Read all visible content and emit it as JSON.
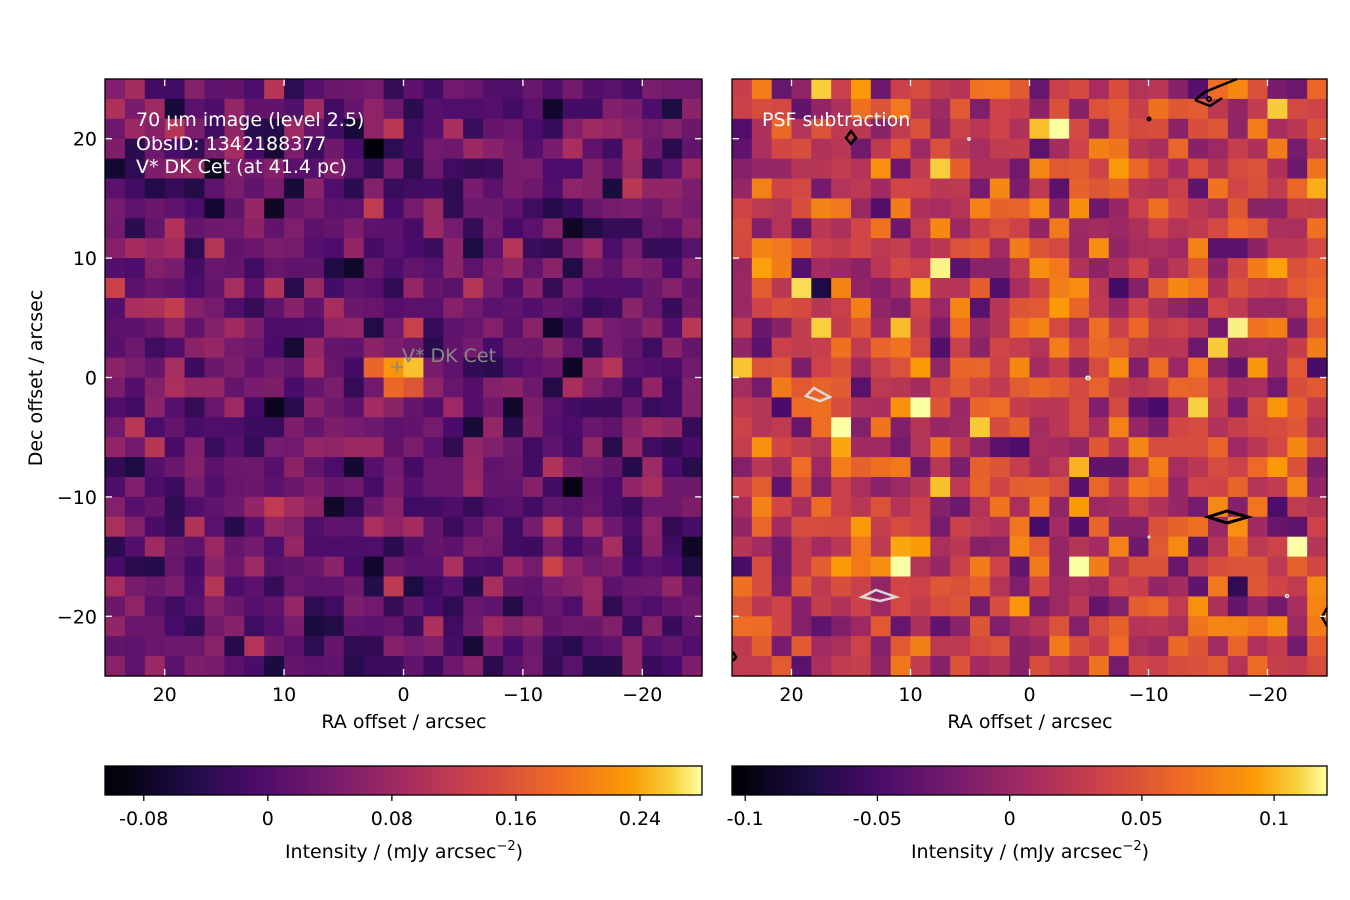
{
  "chart_data": [
    {
      "type": "heatmap",
      "panel": "left",
      "annotations": [
        "70 µm image (level 2.5)",
        "ObsID: 1342188377",
        "V* DK Cet (at 41.4 pc)"
      ],
      "source_label": "V* DK Cet",
      "source_position": [
        0,
        0
      ],
      "xlabel": "RA offset / arcsec",
      "ylabel": "Dec offset / arcsec",
      "xlim": [
        25,
        -25
      ],
      "ylim": [
        -25,
        25
      ],
      "xticks": [
        20,
        10,
        0,
        -10,
        -20
      ],
      "xtick_labels": [
        "20",
        "10",
        "0",
        "−10",
        "−20"
      ],
      "yticks": [
        20,
        10,
        0,
        -10,
        -20
      ],
      "ytick_labels": [
        "20",
        "10",
        "0",
        "−10",
        "−20"
      ],
      "grid_size": 30,
      "colormap": "inferno",
      "colorbar": {
        "label_main": "Intensity / (mJy arcsec",
        "label_exp": "−2",
        "label_end": ")",
        "range": [
          -0.105,
          0.28
        ],
        "ticks": [
          -0.08,
          0,
          0.08,
          0.16,
          0.24
        ],
        "tick_labels": [
          "-0.08",
          "0",
          "0.08",
          "0.16",
          "0.24"
        ]
      },
      "peak": {
        "ra": 0,
        "dec": 0,
        "value": 0.28
      }
    },
    {
      "type": "heatmap",
      "panel": "right",
      "annotations": [
        "PSF subtraction"
      ],
      "xlabel": "RA offset / arcsec",
      "xlim": [
        25,
        -25
      ],
      "ylim": [
        -25,
        25
      ],
      "xticks": [
        20,
        10,
        0,
        -10,
        -20
      ],
      "xtick_labels": [
        "20",
        "10",
        "0",
        "−10",
        "−20"
      ],
      "grid_size": 30,
      "colormap": "inferno",
      "contours": "black: positive residual peaks; white: negative residual dips",
      "colorbar": {
        "label_main": "Intensity / (mJy arcsec",
        "label_exp": "−2",
        "label_end": ")",
        "range": [
          -0.105,
          0.12
        ],
        "ticks": [
          -0.1,
          -0.05,
          0,
          0.05,
          0.1
        ],
        "tick_labels": [
          "-0.1",
          "-0.05",
          "0",
          "0.05",
          "0.1"
        ]
      }
    }
  ]
}
